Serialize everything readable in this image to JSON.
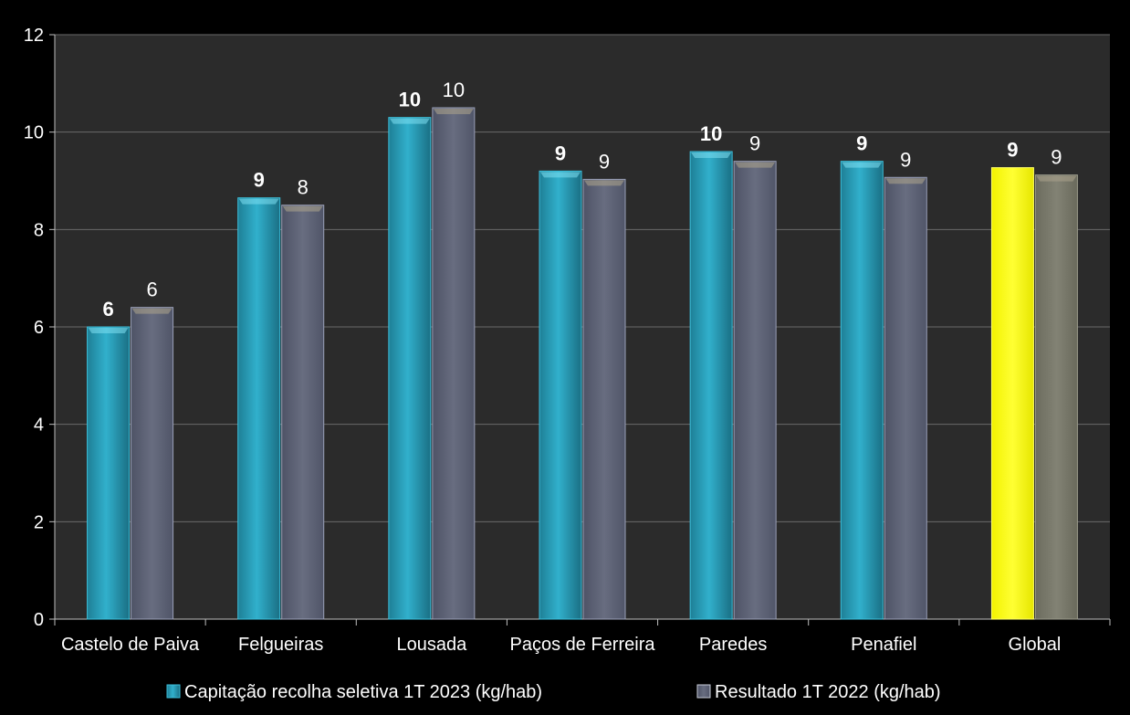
{
  "chart_data": {
    "type": "bar",
    "title": "",
    "xlabel": "",
    "ylabel": "",
    "ylim": [
      0,
      12
    ],
    "yticks": [
      "0",
      "2",
      "4",
      "6",
      "8",
      "10",
      "12"
    ],
    "grid": true,
    "legend_position": "bottom",
    "categories": [
      "Castelo de Paiva",
      "Felgueiras",
      "Lousada",
      "Paços de Ferreira",
      "Paredes",
      "Penafiel",
      "Global"
    ],
    "series": [
      {
        "name": "Capitação recolha seletiva 1T 2023 (kg/hab)",
        "values": [
          6.0,
          8.65,
          10.3,
          9.2,
          9.6,
          9.4,
          9.27
        ],
        "labels": [
          "6",
          "9",
          "10",
          "9",
          "10",
          "9",
          "9"
        ],
        "color": "#2aa3bf",
        "highlight_color": "#ffff00",
        "label_style": "bold"
      },
      {
        "name": "Resultado 1T 2022 (kg/hab)",
        "values": [
          6.4,
          8.5,
          10.5,
          9.03,
          9.4,
          9.07,
          9.12
        ],
        "labels": [
          "6",
          "8",
          "10",
          "9",
          "9",
          "9",
          "9"
        ],
        "color": "#5e6376",
        "highlight_color": "#7a7a6c",
        "label_style": "normal"
      }
    ],
    "colors": {
      "plot_background": "#2b2b2b",
      "grid": "#6a6a6a",
      "text": "#ffffff"
    }
  }
}
